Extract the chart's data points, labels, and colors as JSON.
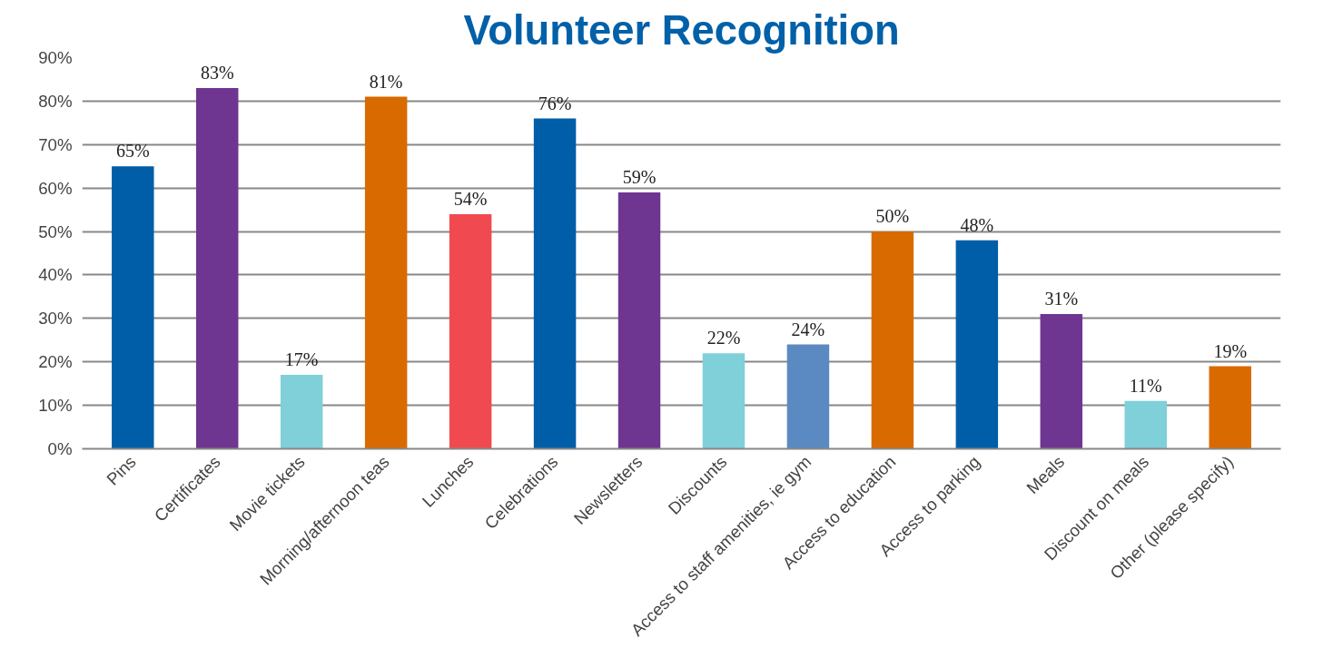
{
  "chart_data": {
    "type": "bar",
    "title": "Volunteer Recognition",
    "categories": [
      "Pins",
      "Certificates",
      "Movie tickets",
      "Morning/afternoon teas",
      "Lunches",
      "Celebrations",
      "Newsletters",
      "Discounts",
      "Access to staff amenities, ie gym",
      "Access to education",
      "Access to parking",
      "Meals",
      "Discount on meals",
      "Other (please specify)"
    ],
    "values": [
      65,
      83,
      17,
      81,
      54,
      76,
      59,
      22,
      24,
      50,
      48,
      31,
      11,
      19
    ],
    "value_labels": [
      "65%",
      "83%",
      "17%",
      "81%",
      "54%",
      "76%",
      "59%",
      "22%",
      "24%",
      "50%",
      "48%",
      "31%",
      "11%",
      "19%"
    ],
    "colors": [
      "#005ea8",
      "#6f3691",
      "#7fd0d8",
      "#d86a00",
      "#f04a50",
      "#005ea8",
      "#6f3691",
      "#7fd0d8",
      "#5b8ac3",
      "#d86a00",
      "#005ea8",
      "#6f3691",
      "#7fd0d8",
      "#d86a00"
    ],
    "ylim": [
      0,
      90
    ],
    "yticks": [
      {
        "value": 0,
        "label": "0%"
      },
      {
        "value": 10,
        "label": "10%"
      },
      {
        "value": 20,
        "label": "20%"
      },
      {
        "value": 30,
        "label": "30%"
      },
      {
        "value": 40,
        "label": "40%"
      },
      {
        "value": 50,
        "label": "50%"
      },
      {
        "value": 60,
        "label": "60%"
      },
      {
        "value": 70,
        "label": "70%"
      },
      {
        "value": 80,
        "label": "80%"
      },
      {
        "value": 90,
        "label": "90%"
      }
    ],
    "grid": "y"
  }
}
